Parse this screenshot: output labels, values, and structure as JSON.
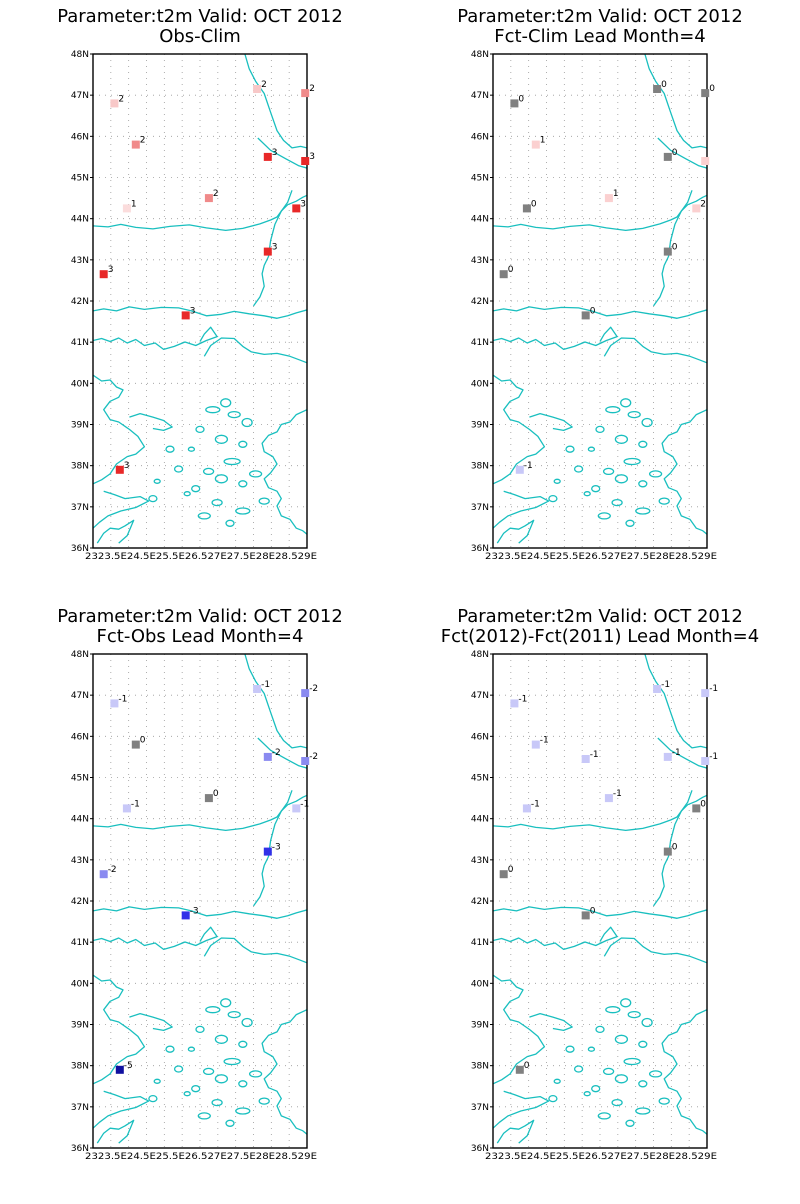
{
  "panels": [
    {
      "title": [
        "Parameter:t2m Valid: OCT 2012",
        "Obs-Clim"
      ],
      "points": [
        {
          "lat": 46.8,
          "lon": 23.6,
          "value": "2",
          "color": "#f8c8c8"
        },
        {
          "lat": 45.8,
          "lon": 24.2,
          "value": "2",
          "color": "#f08a8a"
        },
        {
          "lat": 44.25,
          "lon": 23.95,
          "value": "1",
          "color": "#fbdcdc"
        },
        {
          "lat": 42.65,
          "lon": 23.3,
          "value": "3",
          "color": "#e82828"
        },
        {
          "lat": 41.65,
          "lon": 25.6,
          "value": "3",
          "color": "#e82828"
        },
        {
          "lat": 44.5,
          "lon": 26.25,
          "value": "2",
          "color": "#f08a8a"
        },
        {
          "lat": 47.15,
          "lon": 27.6,
          "value": "2",
          "color": "#f8c8c8"
        },
        {
          "lat": 47.05,
          "lon": 28.95,
          "value": "2",
          "color": "#f08a8a"
        },
        {
          "lat": 45.5,
          "lon": 27.9,
          "value": "3",
          "color": "#e82828"
        },
        {
          "lat": 45.4,
          "lon": 28.95,
          "value": "3",
          "color": "#e82828"
        },
        {
          "lat": 44.25,
          "lon": 28.7,
          "value": "3",
          "color": "#e82828"
        },
        {
          "lat": 43.2,
          "lon": 27.9,
          "value": "3",
          "color": "#e82828"
        },
        {
          "lat": 37.9,
          "lon": 23.75,
          "value": "3",
          "color": "#e82828"
        }
      ]
    },
    {
      "title": [
        "Parameter:t2m Valid: OCT 2012",
        "Fct-Clim Lead Month=4"
      ],
      "points": [
        {
          "lat": 46.8,
          "lon": 23.6,
          "value": "0",
          "color": "#808080"
        },
        {
          "lat": 45.8,
          "lon": 24.2,
          "value": "1",
          "color": "#fbd0d0"
        },
        {
          "lat": 44.25,
          "lon": 23.95,
          "value": "0",
          "color": "#808080"
        },
        {
          "lat": 42.65,
          "lon": 23.3,
          "value": "0",
          "color": "#808080"
        },
        {
          "lat": 41.65,
          "lon": 25.6,
          "value": "0",
          "color": "#808080"
        },
        {
          "lat": 44.5,
          "lon": 26.25,
          "value": "1",
          "color": "#fbd0d0"
        },
        {
          "lat": 47.15,
          "lon": 27.6,
          "value": "0",
          "color": "#808080"
        },
        {
          "lat": 47.05,
          "lon": 28.95,
          "value": "0",
          "color": "#808080"
        },
        {
          "lat": 45.5,
          "lon": 27.9,
          "value": "0",
          "color": "#808080"
        },
        {
          "lat": 45.4,
          "lon": 28.95,
          "value": "",
          "color": "#fbd0d0"
        },
        {
          "lat": 44.25,
          "lon": 28.7,
          "value": "2",
          "color": "#fbd0d0"
        },
        {
          "lat": 43.2,
          "lon": 27.9,
          "value": "0",
          "color": "#808080"
        },
        {
          "lat": 37.9,
          "lon": 23.75,
          "value": "-1",
          "color": "#c8c8f8"
        }
      ]
    },
    {
      "title": [
        "Parameter:t2m Valid: OCT 2012",
        "Fct-Obs Lead Month=4"
      ],
      "points": [
        {
          "lat": 46.8,
          "lon": 23.6,
          "value": "-1",
          "color": "#c8c8f8"
        },
        {
          "lat": 45.8,
          "lon": 24.2,
          "value": "0",
          "color": "#808080"
        },
        {
          "lat": 44.25,
          "lon": 23.95,
          "value": "-1",
          "color": "#c8c8f8"
        },
        {
          "lat": 42.65,
          "lon": 23.3,
          "value": "-2",
          "color": "#8a8af0"
        },
        {
          "lat": 41.65,
          "lon": 25.6,
          "value": "-3",
          "color": "#3030e8"
        },
        {
          "lat": 44.5,
          "lon": 26.25,
          "value": "0",
          "color": "#808080"
        },
        {
          "lat": 47.15,
          "lon": 27.6,
          "value": "-1",
          "color": "#c8c8f8"
        },
        {
          "lat": 47.05,
          "lon": 28.95,
          "value": "-2",
          "color": "#8a8af0"
        },
        {
          "lat": 45.5,
          "lon": 27.9,
          "value": "-2",
          "color": "#8a8af0"
        },
        {
          "lat": 45.4,
          "lon": 28.95,
          "value": "-2",
          "color": "#8a8af0"
        },
        {
          "lat": 44.25,
          "lon": 28.7,
          "value": "-1",
          "color": "#c8c8f8"
        },
        {
          "lat": 43.2,
          "lon": 27.9,
          "value": "-3",
          "color": "#3030e8"
        },
        {
          "lat": 37.9,
          "lon": 23.75,
          "value": "-5",
          "color": "#1010a0"
        }
      ]
    },
    {
      "title": [
        "Parameter:t2m Valid: OCT 2012",
        "Fct(2012)-Fct(2011) Lead Month=4"
      ],
      "points": [
        {
          "lat": 46.8,
          "lon": 23.6,
          "value": "-1",
          "color": "#c8c8f8"
        },
        {
          "lat": 45.8,
          "lon": 24.2,
          "value": "-1",
          "color": "#c8c8f8"
        },
        {
          "lat": 44.25,
          "lon": 23.95,
          "value": "-1",
          "color": "#c8c8f8"
        },
        {
          "lat": 42.65,
          "lon": 23.3,
          "value": "0",
          "color": "#808080"
        },
        {
          "lat": 41.65,
          "lon": 25.6,
          "value": "0",
          "color": "#808080"
        },
        {
          "lat": 45.45,
          "lon": 25.6,
          "value": "-1",
          "color": "#c8c8f8"
        },
        {
          "lat": 44.5,
          "lon": 26.25,
          "value": "-1",
          "color": "#c8c8f8"
        },
        {
          "lat": 47.15,
          "lon": 27.6,
          "value": "-1",
          "color": "#c8c8f8"
        },
        {
          "lat": 47.05,
          "lon": 28.95,
          "value": "-1",
          "color": "#c8c8f8"
        },
        {
          "lat": 45.5,
          "lon": 27.9,
          "value": "-1",
          "color": "#c8c8f8"
        },
        {
          "lat": 45.4,
          "lon": 28.95,
          "value": "-1",
          "color": "#c8c8f8"
        },
        {
          "lat": 44.25,
          "lon": 28.7,
          "value": "0",
          "color": "#808080"
        },
        {
          "lat": 43.2,
          "lon": 27.9,
          "value": "0",
          "color": "#808080"
        },
        {
          "lat": 37.9,
          "lon": 23.75,
          "value": "0",
          "color": "#808080"
        }
      ]
    }
  ],
  "y_ticks": [
    "48N",
    "47N",
    "46N",
    "45N",
    "44N",
    "43N",
    "42N",
    "41N",
    "40N",
    "39N",
    "38N",
    "37N",
    "36N"
  ],
  "x_ticks": [
    "23E",
    "23.5E",
    "24E",
    "24.5E",
    "25E",
    "25.5E",
    "26E",
    "26.5E",
    "27E",
    "27.5E",
    "28E",
    "28.5E",
    "29E"
  ],
  "x_tick_text": "2323.5E24.5E25.5E26.527E27.5E28E28.529E",
  "colors": {
    "coast": "#19bfbf",
    "grid": "#9a9a9a"
  }
}
